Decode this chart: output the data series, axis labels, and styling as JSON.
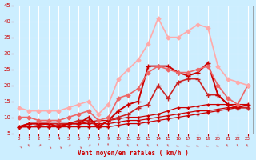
{
  "background_color": "#cceeff",
  "grid_color": "#ffffff",
  "xlabel": "Vent moyen/en rafales ( km/h )",
  "xlabel_color": "#cc0000",
  "tick_color": "#cc0000",
  "xlim": [
    -0.5,
    23.5
  ],
  "ylim": [
    5,
    45
  ],
  "yticks": [
    5,
    10,
    15,
    20,
    25,
    30,
    35,
    40,
    45
  ],
  "xticks": [
    0,
    1,
    2,
    3,
    4,
    5,
    6,
    7,
    8,
    9,
    10,
    11,
    12,
    13,
    14,
    15,
    16,
    17,
    18,
    19,
    20,
    21,
    22,
    23
  ],
  "lines": [
    {
      "x": [
        0,
        1,
        2,
        3,
        4,
        5,
        6,
        7,
        8,
        9,
        10,
        11,
        12,
        13,
        14,
        15,
        16,
        17,
        18,
        19,
        20,
        21,
        22,
        23
      ],
      "y": [
        7,
        7,
        7,
        7,
        7,
        7,
        7,
        7,
        7,
        7,
        7.5,
        8,
        8,
        8.5,
        9,
        9.5,
        10,
        10.5,
        11,
        11.5,
        12,
        12.5,
        13,
        13
      ],
      "color": "#cc0000",
      "lw": 0.9,
      "marker": "+",
      "ms": 3
    },
    {
      "x": [
        0,
        1,
        2,
        3,
        4,
        5,
        6,
        7,
        8,
        9,
        10,
        11,
        12,
        13,
        14,
        15,
        16,
        17,
        18,
        19,
        20,
        21,
        22,
        23
      ],
      "y": [
        7,
        7,
        7,
        7,
        7.5,
        8,
        8,
        8,
        8,
        8,
        8.5,
        9,
        9,
        9.5,
        10,
        10.5,
        11,
        11.5,
        12,
        12,
        12.5,
        13,
        13,
        13
      ],
      "color": "#cc0000",
      "lw": 0.9,
      "marker": "+",
      "ms": 3
    },
    {
      "x": [
        0,
        1,
        2,
        3,
        4,
        5,
        6,
        7,
        8,
        9,
        10,
        11,
        12,
        13,
        14,
        15,
        16,
        17,
        18,
        19,
        20,
        21,
        22,
        23
      ],
      "y": [
        7,
        7,
        7.5,
        8,
        8,
        8,
        8,
        8.5,
        9,
        9,
        9.5,
        10,
        10,
        10.5,
        11,
        12,
        13,
        13,
        13.5,
        14,
        14,
        14,
        14,
        14
      ],
      "color": "#cc0000",
      "lw": 0.9,
      "marker": "+",
      "ms": 3
    },
    {
      "x": [
        0,
        1,
        2,
        3,
        4,
        5,
        6,
        7,
        8,
        9,
        10,
        11,
        12,
        13,
        14,
        15,
        16,
        17,
        18,
        19,
        20,
        21,
        22,
        23
      ],
      "y": [
        7,
        8,
        8,
        8,
        8,
        8,
        9,
        9,
        7,
        9,
        10,
        11,
        13,
        14,
        20,
        16,
        21,
        22,
        22,
        17,
        17,
        14,
        13,
        13
      ],
      "color": "#cc2222",
      "lw": 1.2,
      "marker": "+",
      "ms": 4
    },
    {
      "x": [
        0,
        1,
        2,
        3,
        4,
        5,
        6,
        7,
        8,
        9,
        10,
        11,
        12,
        13,
        14,
        15,
        16,
        17,
        18,
        19,
        20,
        21,
        22,
        23
      ],
      "y": [
        7,
        8,
        8,
        8,
        7,
        8,
        8,
        10,
        7,
        9,
        12,
        14,
        15,
        26,
        26,
        26,
        24,
        23,
        24,
        27,
        17,
        14,
        13,
        14
      ],
      "color": "#cc0000",
      "lw": 1.4,
      "marker": "+",
      "ms": 4
    },
    {
      "x": [
        0,
        1,
        2,
        3,
        4,
        5,
        6,
        7,
        8,
        9,
        10,
        11,
        12,
        13,
        14,
        15,
        16,
        17,
        18,
        19,
        20,
        21,
        22,
        23
      ],
      "y": [
        10,
        10,
        9,
        9,
        9,
        10,
        11,
        12,
        9,
        10,
        16,
        17,
        19,
        24,
        26,
        25,
        24,
        24,
        25,
        26,
        20,
        16,
        14,
        20
      ],
      "color": "#ee6666",
      "lw": 1.2,
      "marker": "D",
      "ms": 2.5
    },
    {
      "x": [
        0,
        1,
        2,
        3,
        4,
        5,
        6,
        7,
        8,
        9,
        10,
        11,
        12,
        13,
        14,
        15,
        16,
        17,
        18,
        19,
        20,
        21,
        22,
        23
      ],
      "y": [
        13,
        12,
        12,
        12,
        12,
        13,
        14,
        15,
        11,
        14,
        22,
        25,
        28,
        33,
        41,
        35,
        35,
        37,
        39,
        38,
        26,
        22,
        21,
        20
      ],
      "color": "#ffaaaa",
      "lw": 1.2,
      "marker": "D",
      "ms": 2.5
    }
  ],
  "wind_arrows": [
    "S",
    "NNE",
    "NW",
    "SSW",
    "SSW",
    "NW",
    "SSW",
    "NW",
    "N",
    "N",
    "NNE",
    "NNE",
    "NNE",
    "NNE",
    "NNE",
    "NNE",
    "ENE",
    "ENE",
    "ENE",
    "ENE",
    "ENE",
    "NNE",
    "NNE",
    "NNE"
  ]
}
